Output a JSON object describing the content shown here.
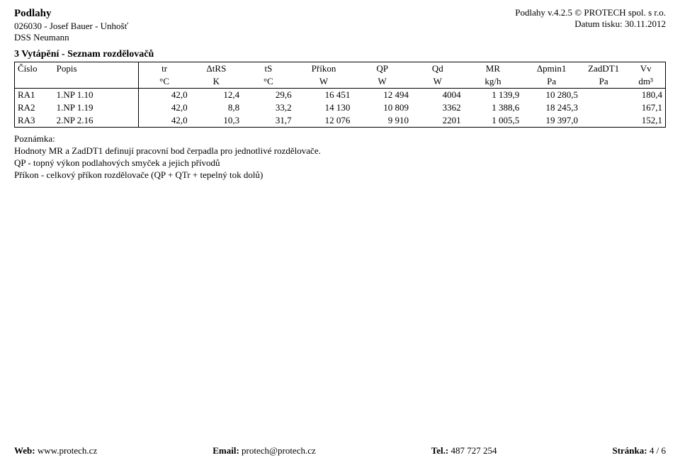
{
  "header": {
    "title_left": "Podlahy",
    "sub_left_1": "026030 - Josef Bauer - Unhošť",
    "sub_left_2": "DSS Neumann",
    "title_right": "Podlahy v.4.2.5 © PROTECH spol. s r.o.",
    "sub_right_1": "Datum tisku: 30.11.2012"
  },
  "section": {
    "title": "3 Vytápění - Seznam rozdělovačů"
  },
  "table": {
    "columns": [
      {
        "key": "cislo",
        "label": "Číslo",
        "unit": "",
        "width": "6%",
        "align": "left"
      },
      {
        "key": "popis",
        "label": "Popis",
        "unit": "",
        "width": "13%",
        "align": "left"
      },
      {
        "key": "tr",
        "label": "tr",
        "unit": "°C",
        "width": "8%",
        "align": "right"
      },
      {
        "key": "dtrs",
        "label": "ΔtRS",
        "unit": "K",
        "width": "8%",
        "align": "right"
      },
      {
        "key": "ts",
        "label": "tS",
        "unit": "°C",
        "width": "8%",
        "align": "right"
      },
      {
        "key": "prikon",
        "label": "Příkon",
        "unit": "W",
        "width": "9%",
        "align": "right"
      },
      {
        "key": "qp",
        "label": "QP",
        "unit": "W",
        "width": "9%",
        "align": "right"
      },
      {
        "key": "qd",
        "label": "Qd",
        "unit": "W",
        "width": "8%",
        "align": "right"
      },
      {
        "key": "mr",
        "label": "MR",
        "unit": "kg/h",
        "width": "9%",
        "align": "right"
      },
      {
        "key": "dpmin1",
        "label": "Δpmin1",
        "unit": "Pa",
        "width": "9%",
        "align": "right"
      },
      {
        "key": "zaddt1",
        "label": "ZadDT1",
        "unit": "Pa",
        "width": "7%",
        "align": "right"
      },
      {
        "key": "vv",
        "label": "Vv",
        "unit": "dm³",
        "width": "6%",
        "align": "right"
      }
    ],
    "rows": [
      [
        "RA1",
        "1.NP 1.10",
        "42,0",
        "12,4",
        "29,6",
        "16 451",
        "12 494",
        "4004",
        "1 139,9",
        "10 280,5",
        "",
        "180,4"
      ],
      [
        "RA2",
        "1.NP 1.19",
        "42,0",
        "8,8",
        "33,2",
        "14 130",
        "10 809",
        "3362",
        "1 388,6",
        "18 245,3",
        "",
        "167,1"
      ],
      [
        "RA3",
        "2.NP 2.16",
        "42,0",
        "10,3",
        "31,7",
        "12 076",
        "9 910",
        "2201",
        "1 005,5",
        "19 397,0",
        "",
        "152,1"
      ]
    ]
  },
  "note": {
    "title": "Poznámka:",
    "line1": "Hodnoty MR a ZadDT1 definují pracovní bod čerpadla pro jednotlivé rozdělovače.",
    "line2": "QP - topný výkon podlahových smyček a jejich přívodů",
    "line3": "Příkon - celkový příkon rozdělovače (QP + QTr + tepelný tok dolů)"
  },
  "footer": {
    "web_label": "Web: ",
    "web_value": "www.protech.cz",
    "email_label": "Email: ",
    "email_value": "protech@protech.cz",
    "tel_label": "Tel.: ",
    "tel_value": "487 727 254",
    "page_label": "Stránka: ",
    "page_value": "4 / 6"
  }
}
